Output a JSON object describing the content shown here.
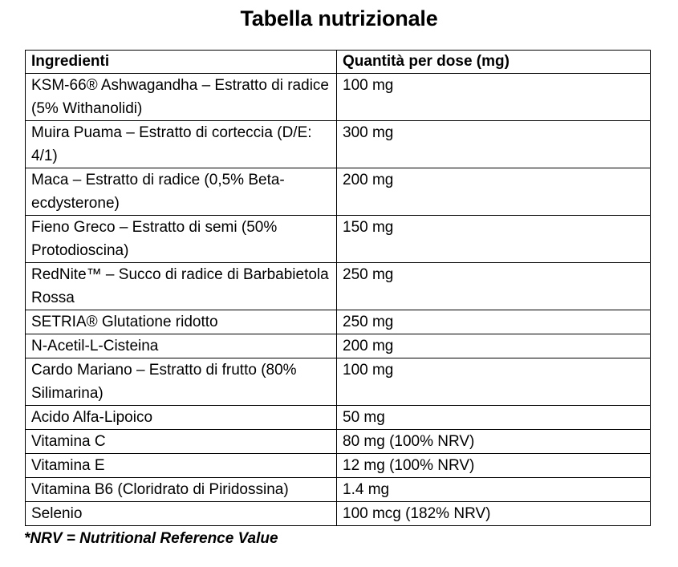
{
  "title": "Tabella nutrizionale",
  "colors": {
    "text": "#000000",
    "background": "#ffffff",
    "table_border": "#000000"
  },
  "table": {
    "headers": [
      "Ingredienti",
      "Quantità per dose (mg)"
    ],
    "rows": [
      {
        "ingredient": "KSM-66® Ashwagandha – Estratto di radice (5% Withanolidi)",
        "quantity": "100 mg"
      },
      {
        "ingredient": "Muira Puama – Estratto di corteccia (D/E: 4/1)",
        "quantity": "300 mg"
      },
      {
        "ingredient": "Maca – Estratto di radice (0,5% Beta-ecdysterone)",
        "quantity": "200 mg"
      },
      {
        "ingredient": "Fieno Greco – Estratto di semi (50% Protodioscina)",
        "quantity": "150 mg"
      },
      {
        "ingredient": "RedNite™ – Succo di radice di Barbabietola Rossa",
        "quantity": "250 mg"
      },
      {
        "ingredient": "SETRIA® Glutatione ridotto",
        "quantity": "250 mg"
      },
      {
        "ingredient": "N-Acetil-L-Cisteina",
        "quantity": "200 mg"
      },
      {
        "ingredient": "Cardo Mariano – Estratto di frutto (80% Silimarina)",
        "quantity": "100 mg"
      },
      {
        "ingredient": "Acido Alfa-Lipoico",
        "quantity": "50 mg"
      },
      {
        "ingredient": "Vitamina C",
        "quantity": "80 mg (100% NRV)"
      },
      {
        "ingredient": "Vitamina E",
        "quantity": "12 mg (100% NRV)"
      },
      {
        "ingredient": "Vitamina B6 (Cloridrato di Piridossina)",
        "quantity": "1.4 mg"
      },
      {
        "ingredient": "Selenio",
        "quantity": "100 mcg (182% NRV)"
      }
    ]
  },
  "footnote": "*NRV = Nutritional Reference Value"
}
